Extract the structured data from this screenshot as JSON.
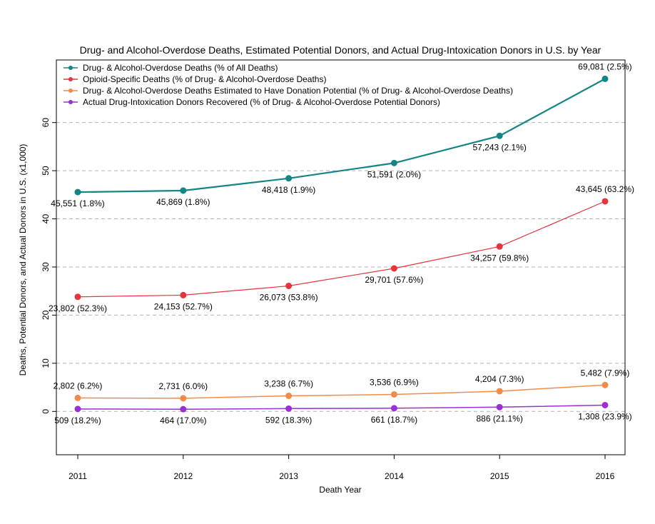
{
  "chart_data": {
    "type": "line",
    "title": "Drug- and Alcohol-Overdose Deaths, Estimated Potential Donors, and Actual Drug-Intoxication Donors in U.S. by Year",
    "xlabel": "Death Year",
    "ylabel": "Deaths, Potential Donors, and Actual Donors in U.S. (x1,000)",
    "x": [
      2011,
      2012,
      2013,
      2014,
      2015,
      2016
    ],
    "xlim": [
      2011,
      2016
    ],
    "ylim": [
      -9,
      73
    ],
    "yticks": [
      0,
      10,
      20,
      30,
      40,
      50,
      60
    ],
    "grid": "horizontal dashed",
    "legend_position": "top-left",
    "series": [
      {
        "name": "Drug- & Alcohol-Overdose Deaths (% of All Deaths)",
        "color": "#138585",
        "values": [
          45.551,
          45.869,
          48.418,
          51.591,
          57.243,
          69.081
        ],
        "labels": [
          "45,551 (1.8%)",
          "45,869 (1.8%)",
          "48,418 (1.9%)",
          "51,591 (2.0%)",
          "57,243 (2.1%)",
          "69,081 (2.5%)"
        ],
        "label_pos": [
          "below",
          "below",
          "below",
          "below",
          "below",
          "above"
        ]
      },
      {
        "name": "Opioid-Specific Deaths (% of Drug- & Alcohol-Overdose Deaths)",
        "color": "#e8323c",
        "values": [
          23.802,
          24.153,
          26.073,
          29.701,
          34.257,
          43.645
        ],
        "labels": [
          "23,802 (52.3%)",
          "24,153 (52.7%)",
          "26,073 (53.8%)",
          "29,701 (57.6%)",
          "34,257 (59.8%)",
          "43,645 (63.2%)"
        ],
        "label_pos": [
          "below",
          "below",
          "below",
          "below",
          "below",
          "above"
        ]
      },
      {
        "name": "Drug- & Alcohol-Overdose Deaths Estimated to Have Donation Potential (% of Drug- & Alcohol-Overdose Deaths)",
        "color": "#f28a4a",
        "values": [
          2.802,
          2.731,
          3.238,
          3.536,
          4.204,
          5.482
        ],
        "labels": [
          "2,802 (6.2%)",
          "2,731 (6.0%)",
          "3,238 (6.7%)",
          "3,536 (6.9%)",
          "4,204 (7.3%)",
          "5,482 (7.9%)"
        ],
        "label_pos": [
          "above",
          "above",
          "above",
          "above",
          "above",
          "above"
        ]
      },
      {
        "name": "Actual Drug-Intoxication Donors Recovered (% of Drug- & Alcohol-Overdose Potential Donors)",
        "color": "#9a2fd6",
        "values": [
          0.509,
          0.464,
          0.592,
          0.661,
          0.886,
          1.308
        ],
        "labels": [
          "509 (18.2%)",
          "464 (17.0%)",
          "592 (18.3%)",
          "661 (18.7%)",
          "886 (21.1%)",
          "1,308 (23.9%)"
        ],
        "label_pos": [
          "below",
          "below",
          "below",
          "below",
          "below",
          "below"
        ]
      }
    ]
  }
}
